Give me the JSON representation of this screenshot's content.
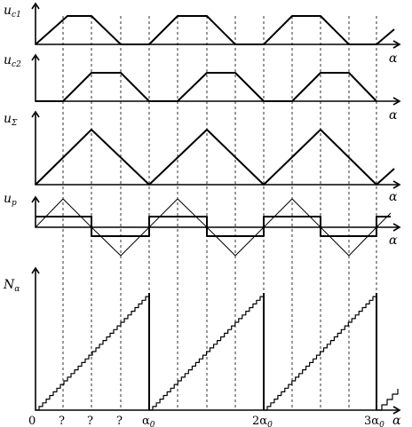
{
  "panels": [
    {
      "id": "uc1",
      "ylabel_main": "u",
      "ylabel_sub": "c1",
      "xlabel": "α"
    },
    {
      "id": "uc2",
      "ylabel_main": "u",
      "ylabel_sub": "c2",
      "xlabel": "α"
    },
    {
      "id": "usum",
      "ylabel_main": "u",
      "ylabel_sub": "Σ",
      "xlabel": "α"
    },
    {
      "id": "up",
      "ylabel_main": "u",
      "ylabel_sub": "p",
      "xlabel": "α"
    },
    {
      "id": "na",
      "ylabel_main": "N",
      "ylabel_sub": "α",
      "xlabel": "α"
    }
  ],
  "x_ticks": [
    "0",
    "?",
    "?",
    "?",
    "α",
    "2α",
    "3α"
  ],
  "x_tick_subs": [
    "0",
    "0",
    "0"
  ]
}
